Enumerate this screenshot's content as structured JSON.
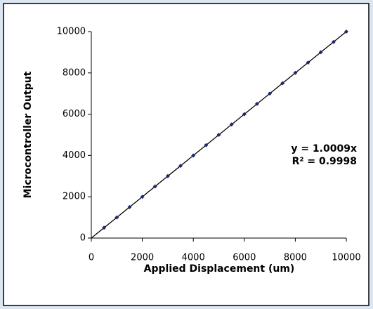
{
  "chart_data": {
    "type": "scatter",
    "xlabel": "Applied Displacement (um)",
    "ylabel": "Microcontroller Output",
    "annotations": [
      "y = 1.0009x",
      "R² = 0.9998"
    ],
    "x": [
      500,
      1000,
      1500,
      2000,
      2500,
      3000,
      3500,
      4000,
      4500,
      5000,
      5500,
      6000,
      6500,
      7000,
      7500,
      8000,
      8500,
      9000,
      9500,
      10000
    ],
    "series": [
      {
        "color": "#1f2a6e",
        "values": [
          500,
          1000,
          1500,
          2000,
          2500,
          3000,
          3500,
          4000,
          4500,
          5000,
          5500,
          6000,
          6500,
          7000,
          7500,
          8000,
          8500,
          9000,
          9500,
          10000
        ]
      }
    ],
    "xlim": [
      0,
      10000
    ],
    "xticks": [
      0,
      2000,
      4000,
      6000,
      8000,
      10000
    ],
    "ylim": [
      0,
      10000
    ],
    "yticks": [
      0,
      2000,
      4000,
      6000,
      8000,
      10000
    ],
    "trendline": true,
    "grid": false
  }
}
